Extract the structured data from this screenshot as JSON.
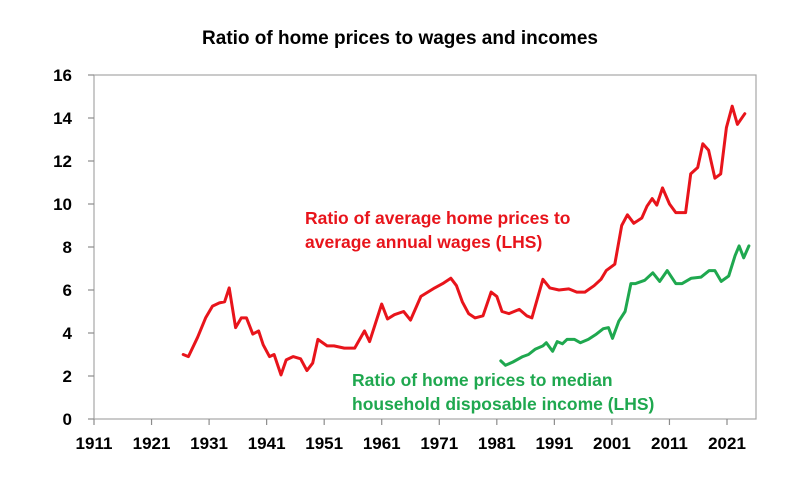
{
  "chart_data": {
    "type": "line",
    "title": "Ratio of home prices to wages and incomes",
    "xlabel": "",
    "ylabel": "",
    "xlim": [
      1911,
      2026
    ],
    "ylim": [
      0,
      16
    ],
    "x_ticks": [
      1911,
      1921,
      1931,
      1941,
      1951,
      1961,
      1971,
      1981,
      1991,
      2001,
      2011,
      2021
    ],
    "y_ticks": [
      0,
      2,
      4,
      6,
      8,
      10,
      12,
      14,
      16
    ],
    "grid": false,
    "legend_position": "inline annotations",
    "series": [
      {
        "name": "Ratio of average home prices to average annual wages (LHS)",
        "color": "#e8141b",
        "label_lines": [
          "Ratio of average home prices to",
          "average annual wages (LHS)"
        ],
        "x": [
          1926.5,
          1927.4,
          1929,
          1930.4,
          1931.6,
          1932.8,
          1933.7,
          1934.5,
          1935.6,
          1936.6,
          1937.5,
          1938.6,
          1939.6,
          1940.4,
          1941.5,
          1942.3,
          1943.5,
          1944.4,
          1945.6,
          1946.9,
          1948,
          1949,
          1949.9,
          1951.5,
          1952.7,
          1954.5,
          1956.3,
          1958,
          1958.9,
          1961,
          1962,
          1963.2,
          1964.8,
          1966,
          1967.8,
          1969,
          1970.2,
          1971.6,
          1973,
          1974,
          1975,
          1976.1,
          1977.2,
          1978.6,
          1980,
          1981,
          1981.9,
          1983.1,
          1984.9,
          1986.2,
          1987.1,
          1989,
          1990.2,
          1991.8,
          1993.5,
          1994.9,
          1996.3,
          1997.9,
          1999.1,
          2000,
          2001.5,
          2002.7,
          2003.7,
          2004.8,
          2006.2,
          2007.1,
          2008,
          2008.8,
          2009.8,
          2011,
          2012.1,
          2013.8,
          2014.7,
          2015.9,
          2016.8,
          2017.8,
          2018.9,
          2019.9,
          2020.9,
          2021.9,
          2022.8,
          2024.1
        ],
        "values": [
          3.0,
          2.9,
          3.8,
          4.7,
          5.25,
          5.4,
          5.45,
          6.1,
          4.25,
          4.7,
          4.7,
          3.95,
          4.1,
          3.45,
          2.9,
          3.0,
          2.05,
          2.75,
          2.9,
          2.8,
          2.25,
          2.6,
          3.7,
          3.4,
          3.4,
          3.3,
          3.3,
          4.1,
          3.6,
          5.35,
          4.65,
          4.85,
          5.0,
          4.6,
          5.7,
          5.9,
          6.1,
          6.3,
          6.55,
          6.2,
          5.45,
          4.9,
          4.7,
          4.8,
          5.9,
          5.7,
          5.0,
          4.9,
          5.1,
          4.8,
          4.7,
          6.5,
          6.1,
          6.0,
          6.05,
          5.9,
          5.9,
          6.2,
          6.5,
          6.9,
          7.2,
          9.0,
          9.5,
          9.1,
          9.35,
          9.9,
          10.25,
          9.95,
          10.75,
          10.0,
          9.6,
          9.6,
          11.4,
          11.7,
          12.8,
          12.5,
          11.2,
          11.4,
          13.55,
          14.55,
          13.7,
          14.2
        ]
      },
      {
        "name": "Ratio of home prices to median household disposable income (LHS)",
        "color": "#1fa84f",
        "label_lines": [
          "Ratio of home prices to median",
          "household disposable income (LHS)"
        ],
        "x": [
          1981.7,
          1982.5,
          1983.8,
          1985.5,
          1986.5,
          1987.7,
          1989,
          1989.6,
          1990.7,
          1991.5,
          1992.4,
          1993.2,
          1994.5,
          1995.5,
          1996.9,
          1998.3,
          1999.5,
          2000.4,
          2001.1,
          2002.2,
          2003.3,
          2004.3,
          2005.1,
          2006.7,
          2008.1,
          2009.3,
          2010.6,
          2012.1,
          2013.2,
          2014.8,
          2016.5,
          2017.9,
          2018.9,
          2020,
          2021.3,
          2022.4,
          2023.1,
          2023.9,
          2024.8
        ],
        "values": [
          2.7,
          2.5,
          2.65,
          2.9,
          3.0,
          3.25,
          3.4,
          3.55,
          3.15,
          3.6,
          3.5,
          3.7,
          3.7,
          3.55,
          3.7,
          3.95,
          4.2,
          4.25,
          3.75,
          4.55,
          5.0,
          6.3,
          6.3,
          6.45,
          6.8,
          6.4,
          6.9,
          6.3,
          6.3,
          6.55,
          6.6,
          6.9,
          6.9,
          6.4,
          6.65,
          7.6,
          8.05,
          7.5,
          8.05
        ]
      }
    ]
  }
}
